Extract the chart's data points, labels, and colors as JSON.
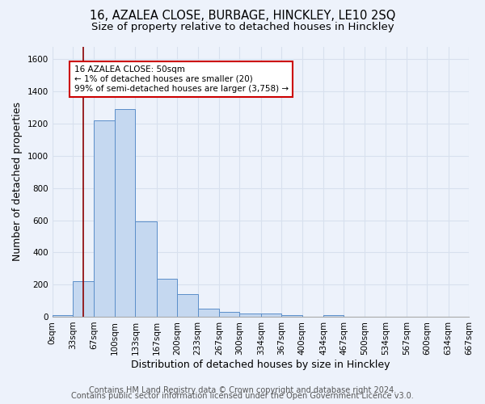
{
  "title": "16, AZALEA CLOSE, BURBAGE, HINCKLEY, LE10 2SQ",
  "subtitle": "Size of property relative to detached houses in Hinckley",
  "xlabel": "Distribution of detached houses by size in Hinckley",
  "ylabel": "Number of detached properties",
  "footer_line1": "Contains HM Land Registry data © Crown copyright and database right 2024.",
  "footer_line2": "Contains public sector information licensed under the Open Government Licence v3.0.",
  "bin_edges": [
    0,
    33,
    67,
    100,
    133,
    167,
    200,
    233,
    267,
    300,
    334,
    367,
    400,
    434,
    467,
    500,
    534,
    567,
    600,
    634,
    667
  ],
  "bin_labels": [
    "0sqm",
    "33sqm",
    "67sqm",
    "100sqm",
    "133sqm",
    "167sqm",
    "200sqm",
    "233sqm",
    "267sqm",
    "300sqm",
    "334sqm",
    "367sqm",
    "400sqm",
    "434sqm",
    "467sqm",
    "500sqm",
    "534sqm",
    "567sqm",
    "600sqm",
    "634sqm",
    "667sqm"
  ],
  "bar_heights": [
    10,
    220,
    1220,
    1290,
    590,
    235,
    140,
    50,
    30,
    22,
    22,
    12,
    0,
    12,
    0,
    0,
    0,
    0,
    0,
    0
  ],
  "bar_color": "#c5d8f0",
  "bar_edgecolor": "#5b8ec9",
  "ylim": [
    0,
    1680
  ],
  "yticks": [
    0,
    200,
    400,
    600,
    800,
    1000,
    1200,
    1400,
    1600
  ],
  "red_line_x": 50,
  "annotation_text": "16 AZALEA CLOSE: 50sqm\n← 1% of detached houses are smaller (20)\n99% of semi-detached houses are larger (3,758) →",
  "annotation_box_color": "#ffffff",
  "annotation_box_edgecolor": "#cc0000",
  "background_color": "#edf2fb",
  "grid_color": "#d8e0ee",
  "title_fontsize": 10.5,
  "subtitle_fontsize": 9.5,
  "axis_label_fontsize": 9,
  "tick_fontsize": 7.5,
  "annotation_fontsize": 7.5,
  "footer_fontsize": 7
}
